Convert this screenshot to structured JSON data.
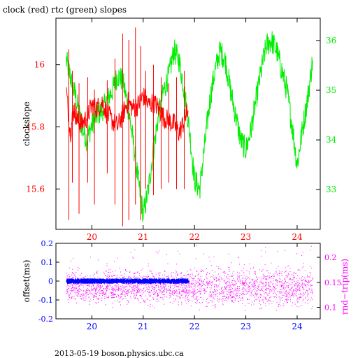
{
  "colors": {
    "red": "#ff0000",
    "green": "#00ee00",
    "black": "#000000",
    "blue": "#0000ff",
    "magenta": "#ff00ff"
  },
  "chart_data": [
    {
      "type": "line",
      "title": "clock (red) rtc (green) slopes",
      "ylabel": "clockslope",
      "x_ticks": [
        "20",
        "21",
        "22",
        "23",
        "24"
      ],
      "xlim": [
        19.3,
        24.45
      ],
      "y_left_ticks": [
        "15.6",
        "15.8",
        "16"
      ],
      "ylim_left": [
        15.47,
        16.15
      ],
      "y_right_ticks": [
        "33",
        "34",
        "35",
        "36"
      ],
      "ylim_right": [
        32.2,
        36.45
      ],
      "series": [
        {
          "name": "clock",
          "axis": "left",
          "color": "#ff0000",
          "x": [
            19.5,
            19.58,
            19.65,
            19.72,
            19.8,
            19.9,
            20.0,
            20.1,
            20.2,
            20.3,
            20.4,
            20.5,
            20.6,
            20.7,
            20.8,
            20.9,
            21.0,
            21.1,
            21.2,
            21.3,
            21.4,
            21.5,
            21.6,
            21.7,
            21.8,
            21.88
          ],
          "y": [
            15.92,
            15.78,
            15.86,
            15.82,
            15.81,
            15.83,
            15.87,
            15.86,
            15.88,
            15.84,
            15.82,
            15.8,
            15.84,
            15.88,
            15.86,
            15.87,
            15.9,
            15.87,
            15.88,
            15.86,
            15.83,
            15.82,
            15.81,
            15.78,
            15.82,
            15.86
          ],
          "spikes_x": [
            19.55,
            19.62,
            19.75,
            19.92,
            20.05,
            20.3,
            20.45,
            20.6,
            20.72,
            20.85,
            20.95,
            21.05,
            21.2,
            21.35,
            21.5,
            21.65,
            21.8
          ],
          "spikes_low": [
            15.5,
            15.62,
            15.52,
            15.62,
            15.55,
            15.65,
            15.55,
            15.48,
            15.5,
            15.55,
            15.5,
            15.6,
            15.58,
            15.6,
            15.62,
            15.6,
            15.6
          ],
          "spikes_high": [
            16.05,
            15.98,
            15.94,
            15.96,
            15.92,
            15.95,
            16.02,
            16.1,
            16.08,
            16.12,
            16.06,
            15.98,
            16.0,
            15.96,
            15.94,
            15.96,
            15.98
          ]
        },
        {
          "name": "rtc",
          "axis": "right",
          "color": "#00ee00",
          "x": [
            19.5,
            19.6,
            19.7,
            19.8,
            19.9,
            20.0,
            20.1,
            20.2,
            20.3,
            20.4,
            20.5,
            20.6,
            20.7,
            20.8,
            20.9,
            21.0,
            21.1,
            21.2,
            21.3,
            21.4,
            21.5,
            21.6,
            21.7,
            21.8,
            21.9,
            22.0,
            22.1,
            22.2,
            22.3,
            22.4,
            22.5,
            22.6,
            22.7,
            22.8,
            22.9,
            23.0,
            23.1,
            23.2,
            23.3,
            23.4,
            23.5,
            23.6,
            23.7,
            23.8,
            23.9,
            24.0,
            24.1,
            24.2,
            24.3
          ],
          "y": [
            35.6,
            35.2,
            34.8,
            34.3,
            34.0,
            34.3,
            34.5,
            34.6,
            34.8,
            35.0,
            35.3,
            35.2,
            34.7,
            34.0,
            33.2,
            32.5,
            33.0,
            33.8,
            34.5,
            35.0,
            35.3,
            35.8,
            35.6,
            35.0,
            34.2,
            33.2,
            33.0,
            33.9,
            34.8,
            35.4,
            35.8,
            35.6,
            35.0,
            34.5,
            34.0,
            33.8,
            34.2,
            34.8,
            35.4,
            35.9,
            36.0,
            35.8,
            35.4,
            35.0,
            34.3,
            33.5,
            34.2,
            34.8,
            35.6
          ]
        }
      ]
    },
    {
      "type": "scatter",
      "ylabel_left": "offset(ms)",
      "ylabel_right": "rnd−trip(ms)",
      "x_ticks": [
        "20",
        "21",
        "22",
        "23",
        "24"
      ],
      "xlim": [
        19.3,
        24.45
      ],
      "y_left_ticks": [
        "0.2",
        "0.1",
        "0",
        "-0.1",
        "-0.2"
      ],
      "ylim_left": [
        -0.2,
        0.2
      ],
      "y_right_ticks": [
        "0.2",
        "0.15",
        "0.1"
      ],
      "ylim_right": [
        0.077,
        0.228
      ],
      "series": [
        {
          "name": "offset",
          "axis": "left",
          "color": "#0000ff",
          "x_range": [
            19.5,
            21.88
          ],
          "y_center": 0.0,
          "y_spread": 0.012
        },
        {
          "name": "rnd-trip",
          "axis": "right",
          "color": "#ff00ff",
          "x_range": [
            19.5,
            24.3
          ],
          "y_center": 0.14,
          "y_spread": 0.035
        }
      ]
    }
  ],
  "footer": "2013-05-19  boson.physics.ubc.ca"
}
